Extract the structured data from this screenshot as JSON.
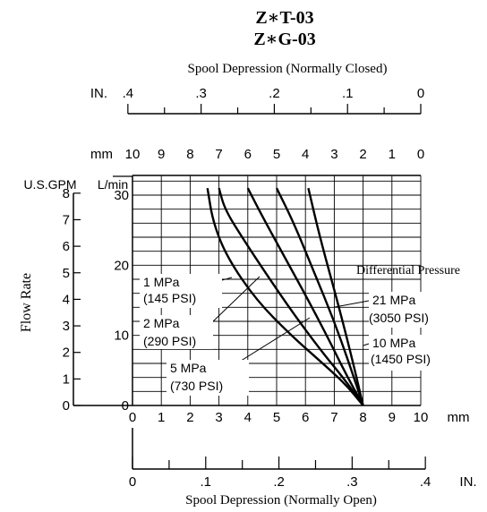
{
  "titles": {
    "line1": "Z∗T-03",
    "line2": "Z∗G-03"
  },
  "top_scale": {
    "caption": "Spool Depression (Normally Closed)",
    "unit": "IN.",
    "ticks": [
      ".4",
      ".3",
      ".2",
      ".1",
      "0"
    ]
  },
  "mm_scale": {
    "unit": "mm",
    "ticks": [
      "10",
      "9",
      "8",
      "7",
      "6",
      "5",
      "4",
      "3",
      "2",
      "1",
      "0"
    ]
  },
  "flow_axis": {
    "label": "Flow Rate",
    "gpm_unit": "U.S.GPM",
    "lmin_unit": "L/min",
    "gpm_ticks": [
      "8",
      "7",
      "6",
      "5",
      "4",
      "3",
      "2",
      "1",
      "0"
    ],
    "lmin_ticks": [
      "30",
      "20",
      "10",
      "0"
    ]
  },
  "bottom_mm_scale": {
    "unit": "mm",
    "ticks": [
      "0",
      "1",
      "2",
      "3",
      "4",
      "5",
      "6",
      "7",
      "8",
      "9",
      "10"
    ]
  },
  "bottom_scale": {
    "caption": "Spool Depression (Normally Open)",
    "unit": "IN.",
    "ticks": [
      "0",
      ".1",
      ".2",
      ".3",
      ".4"
    ]
  },
  "legend_title": "Differential Pressure",
  "annotations": [
    {
      "line1": "1 MPa",
      "line2": "(145 PSI)"
    },
    {
      "line1": "2 MPa",
      "line2": "(290 PSI)"
    },
    {
      "line1": "5 MPa",
      "line2": "(730 PSI)"
    },
    {
      "line1": "21 MPa",
      "line2": "(3050 PSI)"
    },
    {
      "line1": "10 MPa",
      "line2": "(1450 PSI)"
    }
  ],
  "chart_data": {
    "type": "line",
    "xlabel": "Spool Depression (Normally Open)",
    "ylabel": "Flow Rate",
    "x_unit": "mm",
    "y_unit": "L/min",
    "xlim": [
      0,
      10
    ],
    "ylim": [
      0,
      30
    ],
    "series": [
      {
        "name": "1 MPa (145 PSI)",
        "x": [
          2.6,
          2.8,
          3.3,
          4.3,
          5.5,
          6.6,
          7.4,
          8.0
        ],
        "y": [
          31,
          26,
          21,
          15,
          10,
          6,
          3,
          0
        ]
      },
      {
        "name": "2 MPa (290 PSI)",
        "x": [
          3.0,
          3.2,
          3.8,
          4.6,
          5.6,
          6.6,
          7.4,
          8.0
        ],
        "y": [
          31,
          28,
          24,
          19,
          13,
          7.5,
          3.5,
          0
        ]
      },
      {
        "name": "5 MPa (730 PSI)",
        "x": [
          4.0,
          4.5,
          5.3,
          6.1,
          6.8,
          7.4,
          8.0
        ],
        "y": [
          31,
          27,
          21,
          15,
          9.5,
          4.5,
          0
        ]
      },
      {
        "name": "10 MPa (1450 PSI)",
        "x": [
          5.0,
          5.6,
          6.3,
          7.0,
          7.6,
          8.0
        ],
        "y": [
          31,
          26,
          19,
          12,
          5,
          0
        ]
      },
      {
        "name": "21 MPa (3050 PSI)",
        "x": [
          6.1,
          6.5,
          7.1,
          7.6,
          8.0
        ],
        "y": [
          31,
          24,
          15,
          7,
          0
        ]
      }
    ]
  }
}
